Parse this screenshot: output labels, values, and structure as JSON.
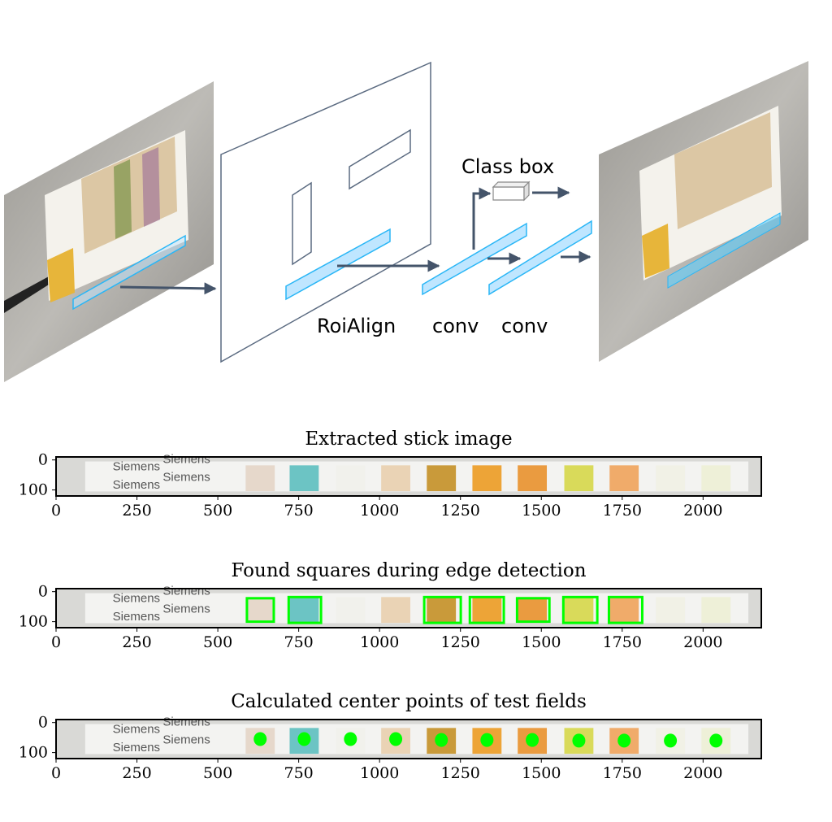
{
  "diagram": {
    "labels": {
      "class_box": "Class box",
      "roialign": "RoiAlign",
      "conv1": "conv",
      "conv2": "conv"
    },
    "colors": {
      "roi_fill": "#bfe6ff",
      "roi_stroke": "#29b6f6",
      "arrow": "#44546a",
      "plane": "#5a6a80"
    }
  },
  "strip": {
    "brand_text": [
      "Siemens",
      "Siemens",
      "Siemens",
      "Siemens"
    ],
    "pad_colors": [
      "#e6d8cb",
      "#6cc4c4",
      "#f1f1ec",
      "#ead3b5",
      "#c99a3a",
      "#eda437",
      "#ea9b40",
      "#d9da5a",
      "#f0ab6a",
      "#f1f1e6",
      "#eef0d8"
    ]
  },
  "chart_data": [
    {
      "type": "image",
      "title": "Extracted stick image",
      "xticks": [
        0,
        250,
        500,
        750,
        1000,
        1250,
        1500,
        1750,
        2000
      ],
      "yticks": [
        0,
        100
      ],
      "xlim": [
        0,
        2180
      ],
      "ylim": [
        120,
        -10
      ]
    },
    {
      "type": "image",
      "title": "Found squares during edge detection",
      "xticks": [
        0,
        250,
        500,
        750,
        1000,
        1250,
        1500,
        1750,
        2000
      ],
      "yticks": [
        0,
        100
      ],
      "xlim": [
        0,
        2180
      ],
      "ylim": [
        120,
        -10
      ],
      "squares": [
        {
          "x0": 590,
          "x1": 673,
          "y0": 22,
          "y1": 100
        },
        {
          "x0": 719,
          "x1": 819,
          "y0": 18,
          "y1": 104
        },
        {
          "x0": 1138,
          "x1": 1251,
          "y0": 18,
          "y1": 104
        },
        {
          "x0": 1279,
          "x1": 1384,
          "y0": 18,
          "y1": 104
        },
        {
          "x0": 1425,
          "x1": 1525,
          "y0": 22,
          "y1": 100
        },
        {
          "x0": 1568,
          "x1": 1673,
          "y0": 18,
          "y1": 104
        },
        {
          "x0": 1709,
          "x1": 1812,
          "y0": 18,
          "y1": 104
        }
      ],
      "square_color": "#00ff00"
    },
    {
      "type": "scatter",
      "title": "Calculated center points of test fields",
      "xticks": [
        0,
        250,
        500,
        750,
        1000,
        1250,
        1500,
        1750,
        2000
      ],
      "yticks": [
        0,
        100
      ],
      "xlim": [
        0,
        2180
      ],
      "ylim": [
        120,
        -10
      ],
      "points": [
        {
          "x": 631,
          "y": 55
        },
        {
          "x": 767,
          "y": 55
        },
        {
          "x": 910,
          "y": 55
        },
        {
          "x": 1050,
          "y": 55
        },
        {
          "x": 1191,
          "y": 58
        },
        {
          "x": 1332,
          "y": 58
        },
        {
          "x": 1472,
          "y": 58
        },
        {
          "x": 1616,
          "y": 60
        },
        {
          "x": 1756,
          "y": 60
        },
        {
          "x": 1899,
          "y": 60
        },
        {
          "x": 2040,
          "y": 60
        }
      ],
      "point_color": "#00ff00"
    }
  ]
}
